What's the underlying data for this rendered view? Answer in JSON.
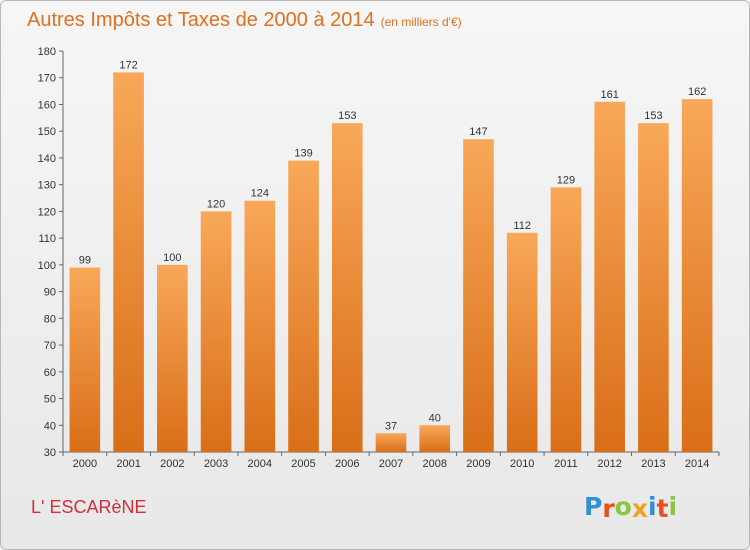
{
  "title": "Autres Impôts et Taxes de 2000 à 2014",
  "unit": "(en milliers d'€)",
  "commune": "L' ESCARèNE",
  "logo": {
    "letters": [
      {
        "ch": "P",
        "color": "#2e8fd8"
      },
      {
        "ch": "r",
        "color": "#e8501e"
      },
      {
        "ch": "o",
        "color": "#8cc63f"
      },
      {
        "ch": "x",
        "color": "#f3a21b"
      },
      {
        "ch": "i",
        "color": "#2e8fd8"
      },
      {
        "ch": "t",
        "color": "#e8501e"
      },
      {
        "ch": "i",
        "color": "#8cc63f"
      }
    ]
  },
  "colors": {
    "title": "#e0701f",
    "bar_light": "#f8a859",
    "bar_dark": "#d96e18",
    "commune": "#d12f3a"
  },
  "chart_data": {
    "type": "bar",
    "categories": [
      "2000",
      "2001",
      "2002",
      "2003",
      "2004",
      "2005",
      "2006",
      "2007",
      "2008",
      "2009",
      "2010",
      "2011",
      "2012",
      "2013",
      "2014"
    ],
    "values": [
      99,
      172,
      100,
      120,
      124,
      139,
      153,
      37,
      40,
      147,
      112,
      129,
      161,
      153,
      162
    ],
    "ylim": [
      30,
      180
    ],
    "yticks": [
      30,
      40,
      50,
      60,
      70,
      80,
      90,
      100,
      110,
      120,
      130,
      140,
      150,
      160,
      170,
      180
    ],
    "grid": false
  }
}
